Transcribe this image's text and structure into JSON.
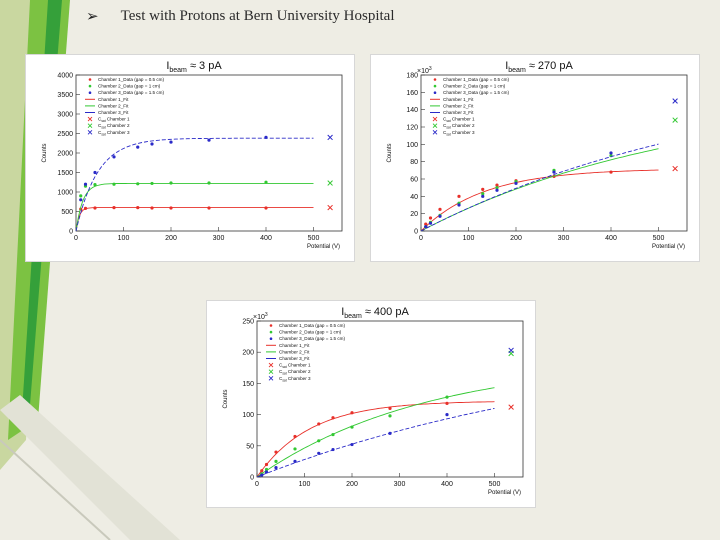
{
  "slide": {
    "title": "Test with Protons  at  Bern University Hospital",
    "bullet_icon": "arrow-bullet-icon",
    "accent_colors": [
      "#35a03a",
      "#7cc242",
      "#c8d88a"
    ]
  },
  "legend_entries": [
    "Chamber 1_Data (gap = 0.5 cm)",
    "Chamber 2_Data (gap = 1 cm)",
    "Chamber 3_Data (gap = 1.5 cm)",
    "Chamber 1_Fit",
    "Chamber 2_Fit",
    "Chamber 3_Fit",
    "Chamber 1",
    "Chamber 2",
    "Chamber 3"
  ],
  "legend_sub": "sat",
  "legend_prefix": "C",
  "series_colors": [
    "#e8302a",
    "#32c832",
    "#2a2ac8"
  ],
  "chart_data": [
    {
      "type": "scatter",
      "title_prefix": "I",
      "title_sub": "beam",
      "title_value": "≈ 3 pA",
      "xlabel": "Potential (V)",
      "ylabel": "Counts",
      "exponent": "",
      "xlim": [
        0,
        560
      ],
      "ylim": [
        0,
        4000
      ],
      "xticks": [
        0,
        100,
        200,
        300,
        400,
        500
      ],
      "yticks": [
        0,
        500,
        1000,
        1500,
        2000,
        2500,
        3000,
        3500,
        4000
      ],
      "series": [
        {
          "name": "Chamber 1",
          "x": [
            10,
            20,
            40,
            80,
            130,
            160,
            200,
            280,
            400
          ],
          "y": [
            560,
            580,
            590,
            600,
            600,
            590,
            590,
            590,
            590
          ],
          "fit_a": 600,
          "fit_b": 0.15
        },
        {
          "name": "Chamber 2",
          "x": [
            10,
            20,
            40,
            80,
            130,
            160,
            200,
            280,
            400
          ],
          "y": [
            900,
            1150,
            1190,
            1200,
            1210,
            1220,
            1230,
            1230,
            1250
          ],
          "fit_a": 1220,
          "fit_b": 0.07
        },
        {
          "name": "Chamber 3",
          "x": [
            10,
            20,
            40,
            80,
            130,
            160,
            200,
            280,
            400
          ],
          "y": [
            800,
            1200,
            1500,
            1900,
            2150,
            2230,
            2280,
            2330,
            2400
          ],
          "fit_a": 2380,
          "fit_b": 0.022
        }
      ],
      "csat": [
        600,
        1230,
        2400
      ],
      "csat_x": 535
    },
    {
      "type": "scatter",
      "title_prefix": "I",
      "title_sub": "beam",
      "title_value": "≈ 270 pA",
      "xlabel": "Potential (V)",
      "ylabel": "Counts",
      "exponent": "×10",
      "exponent_power": "3",
      "xlim": [
        0,
        560
      ],
      "ylim": [
        0,
        180
      ],
      "xticks": [
        0,
        100,
        200,
        300,
        400,
        500
      ],
      "yticks": [
        0,
        20,
        40,
        60,
        80,
        100,
        120,
        140,
        160,
        180
      ],
      "series": [
        {
          "name": "Chamber 1",
          "x": [
            10,
            20,
            40,
            80,
            130,
            160,
            200,
            280,
            400
          ],
          "y": [
            8,
            15,
            25,
            40,
            48,
            53,
            58,
            63,
            68
          ],
          "fit_a": 72,
          "fit_b": 0.0075
        },
        {
          "name": "Chamber 2",
          "x": [
            10,
            20,
            40,
            80,
            130,
            160,
            200,
            280,
            400
          ],
          "y": [
            5,
            10,
            18,
            32,
            43,
            50,
            57,
            70,
            87
          ],
          "fit_a": 160,
          "fit_b": 0.0018
        },
        {
          "name": "Chamber 3",
          "x": [
            10,
            20,
            40,
            80,
            130,
            160,
            200,
            280,
            400
          ],
          "y": [
            5,
            9,
            17,
            30,
            40,
            47,
            55,
            68,
            90
          ],
          "fit_a": 190,
          "fit_b": 0.0015
        }
      ],
      "csat": [
        72,
        128,
        150
      ],
      "csat_x": 535
    },
    {
      "type": "scatter",
      "title_prefix": "I",
      "title_sub": "beam",
      "title_value": "≈ 400 pA",
      "xlabel": "Potential (V)",
      "ylabel": "Counts",
      "exponent": "×10",
      "exponent_power": "3",
      "xlim": [
        0,
        560
      ],
      "ylim": [
        0,
        250
      ],
      "xticks": [
        0,
        100,
        200,
        300,
        400,
        500
      ],
      "yticks": [
        0,
        50,
        100,
        150,
        200,
        250
      ],
      "series": [
        {
          "name": "Chamber 1",
          "x": [
            10,
            20,
            40,
            80,
            130,
            160,
            200,
            280,
            400
          ],
          "y": [
            10,
            20,
            40,
            65,
            85,
            95,
            103,
            110,
            118
          ],
          "fit_a": 122,
          "fit_b": 0.009
        },
        {
          "name": "Chamber 2",
          "x": [
            10,
            20,
            40,
            80,
            130,
            160,
            200,
            280,
            400
          ],
          "y": [
            5,
            12,
            25,
            45,
            58,
            68,
            80,
            98,
            128
          ],
          "fit_a": 190,
          "fit_b": 0.0028
        },
        {
          "name": "Chamber 3",
          "x": [
            10,
            20,
            40,
            80,
            130,
            160,
            200,
            280,
            400
          ],
          "y": [
            3,
            8,
            15,
            25,
            38,
            44,
            52,
            70,
            100
          ],
          "fit_a": 230,
          "fit_b": 0.0013
        }
      ],
      "csat": [
        112,
        198,
        203
      ],
      "csat_x": 535
    }
  ]
}
